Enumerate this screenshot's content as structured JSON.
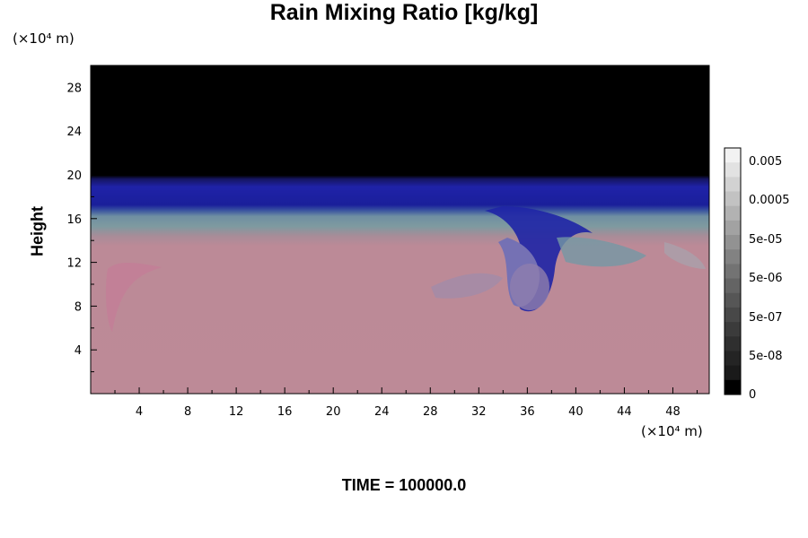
{
  "chart_data": {
    "type": "heatmap",
    "title": "Rain Mixing Ratio [kg/kg]",
    "ylabel": "Height",
    "x_unit": "(×10⁴ m)",
    "y_unit": "(×10⁴ m)",
    "footer": "TIME = 100000.0",
    "xlim": [
      0,
      51
    ],
    "ylim": [
      0,
      30
    ],
    "x_ticks": [
      4,
      8,
      12,
      16,
      20,
      24,
      28,
      32,
      36,
      40,
      44,
      48
    ],
    "y_ticks": [
      4,
      8,
      12,
      16,
      20,
      24,
      28
    ],
    "colorbar": {
      "labels": [
        "0.005",
        "0.0005",
        "5e-05",
        "5e-06",
        "5e-07",
        "5e-08",
        "0"
      ],
      "colors": [
        "#f2f2f2",
        "#e2e2e2",
        "#d2d2d2",
        "#c2c2c2",
        "#b2b2b2",
        "#a2a2a2",
        "#929292",
        "#828282",
        "#737373",
        "#646464",
        "#565656",
        "#484848",
        "#3b3b3b",
        "#2f2f2f",
        "#242424",
        "#1a1a1a",
        "#000000"
      ]
    },
    "layers": [
      {
        "name": "top",
        "y_range": [
          19.5,
          30
        ],
        "color": "#000000"
      },
      {
        "name": "blue band",
        "y_range": [
          16.5,
          19.5
        ],
        "color": "#1f1fa0"
      },
      {
        "name": "transition",
        "y_range": [
          13.5,
          16.5
        ],
        "color": "#4d6fa0"
      },
      {
        "name": "lower",
        "y_range": [
          0,
          13.5
        ],
        "color": "#bc8a97"
      }
    ]
  }
}
